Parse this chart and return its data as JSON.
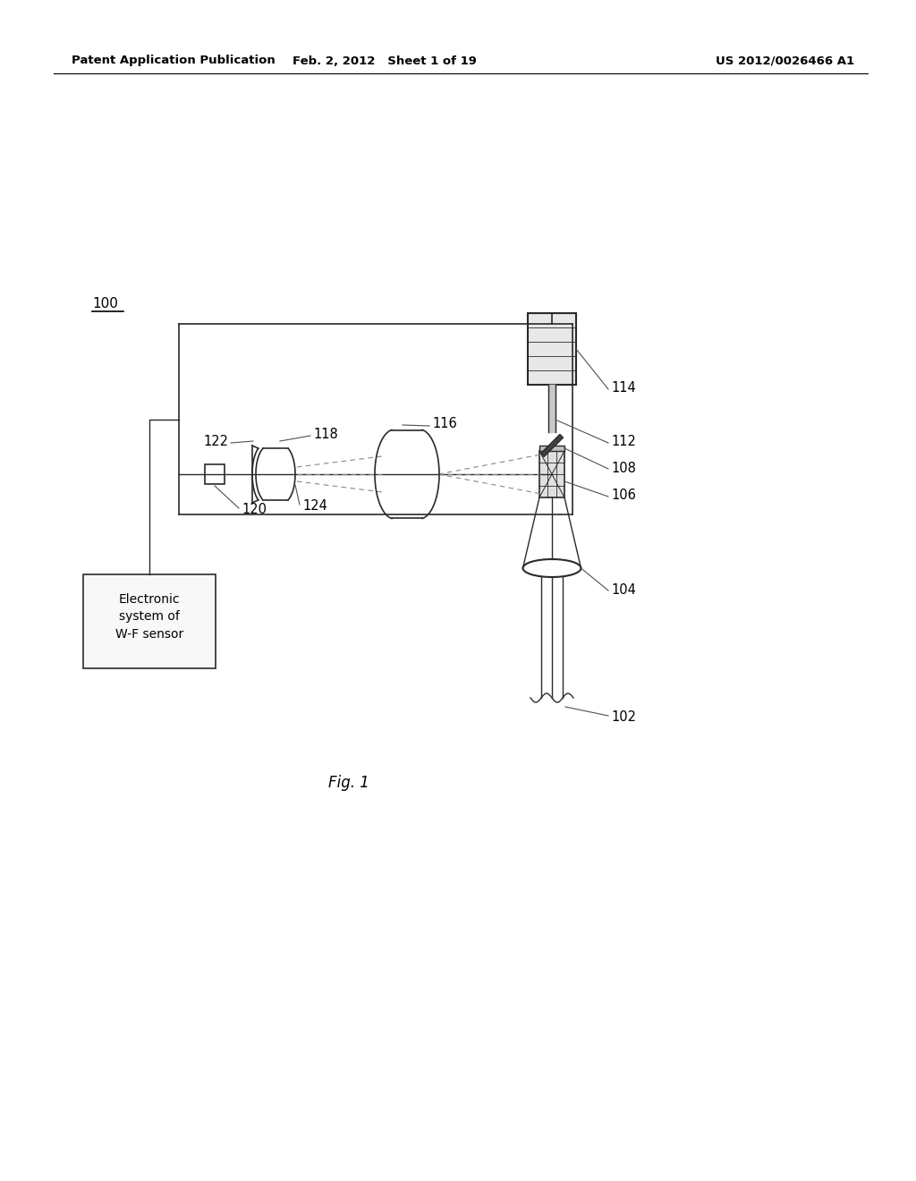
{
  "bg_color": "#ffffff",
  "header_left": "Patent Application Publication",
  "header_mid": "Feb. 2, 2012   Sheet 1 of 19",
  "header_right": "US 2012/0026466 A1",
  "fig_label": "Fig. 1",
  "line_color": "#2a2a2a",
  "dashed_color": "#888888"
}
